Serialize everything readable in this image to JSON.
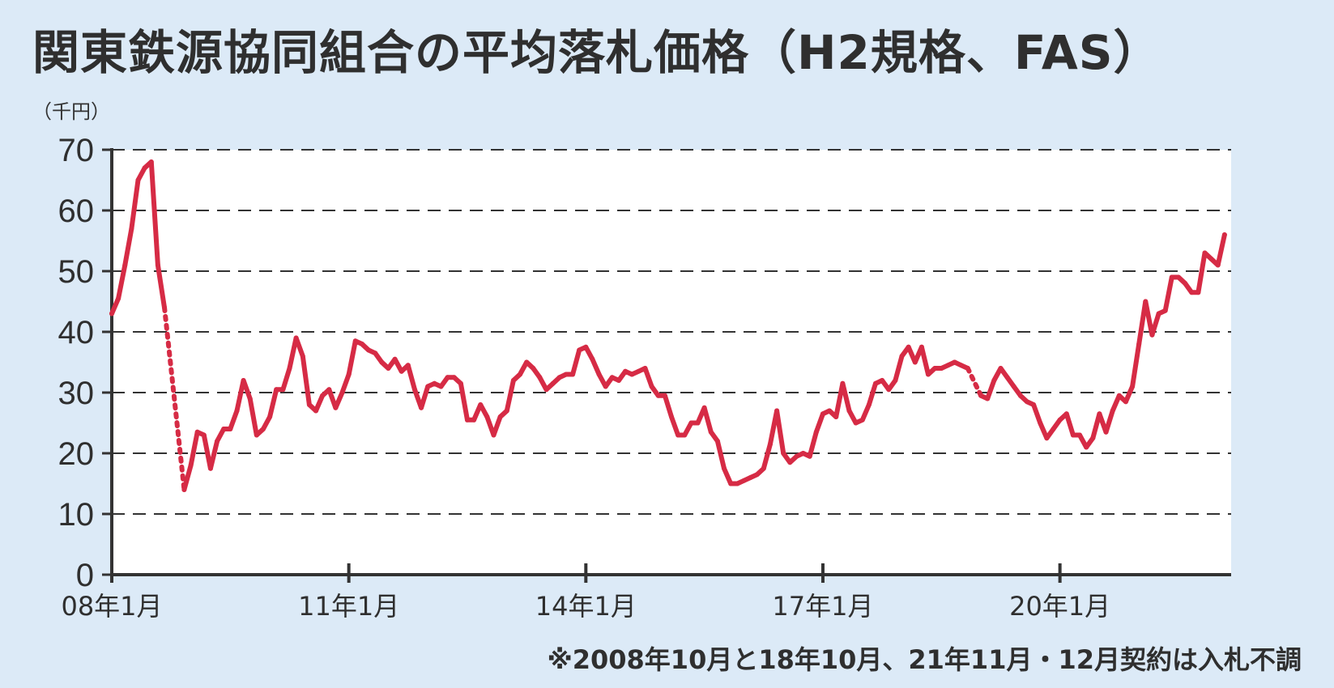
{
  "title": "関東鉄源協同組合の平均落札価格（H2規格、FAS）",
  "unit_label": "（千円）",
  "note": "※2008年10月と18年10月、21年11月・12月契約は入札不調",
  "colors": {
    "line": "#d62b45",
    "background": "#dceaf7",
    "plot_bg": "#ffffff",
    "grid": "#333333"
  },
  "chart_data": {
    "type": "line",
    "title": "関東鉄源協同組合の平均落札価格（H2規格、FAS）",
    "ylabel": "（千円）",
    "ylim": [
      0,
      70
    ],
    "y_ticks": [
      0,
      10,
      20,
      30,
      40,
      50,
      60,
      70
    ],
    "x_ticks": [
      {
        "month": 0,
        "label": "08年1月"
      },
      {
        "month": 36,
        "label": "11年1月"
      },
      {
        "month": 72,
        "label": "14年1月"
      },
      {
        "month": 108,
        "label": "17年1月"
      },
      {
        "month": 144,
        "label": "20年1月"
      }
    ],
    "x_unit": "months since 08年1月",
    "xlim": [
      0,
      170
    ],
    "grid": "horizontal dashed",
    "series": [
      {
        "values": [
          [
            0,
            43
          ],
          [
            1,
            45.5
          ],
          [
            2,
            51
          ],
          [
            3,
            57
          ],
          [
            4,
            65
          ],
          [
            5,
            67
          ],
          [
            6,
            68
          ],
          [
            7,
            51
          ],
          [
            8,
            44
          ],
          [
            11,
            14
          ],
          [
            12,
            18
          ],
          [
            13,
            23.5
          ],
          [
            14,
            23
          ],
          [
            15,
            17.5
          ],
          [
            16,
            22
          ],
          [
            17,
            24
          ],
          [
            18,
            24
          ],
          [
            19,
            27
          ],
          [
            20,
            32
          ],
          [
            21,
            29
          ],
          [
            22,
            23
          ],
          [
            23,
            24
          ],
          [
            24,
            26
          ],
          [
            25,
            30.5
          ],
          [
            26,
            30.5
          ],
          [
            27,
            34
          ],
          [
            28,
            39
          ],
          [
            29,
            36
          ],
          [
            30,
            28
          ],
          [
            31,
            27
          ],
          [
            32,
            29.5
          ],
          [
            33,
            30.5
          ],
          [
            34,
            27.5
          ],
          [
            35,
            30
          ],
          [
            36,
            33
          ],
          [
            37,
            38.5
          ],
          [
            38,
            38
          ],
          [
            39,
            37
          ],
          [
            40,
            36.5
          ],
          [
            41,
            35
          ],
          [
            42,
            34
          ],
          [
            43,
            35.5
          ],
          [
            44,
            33.5
          ],
          [
            45,
            34.5
          ],
          [
            46,
            30.5
          ],
          [
            47,
            27.5
          ],
          [
            48,
            31
          ],
          [
            49,
            31.5
          ],
          [
            50,
            31
          ],
          [
            51,
            32.5
          ],
          [
            52,
            32.5
          ],
          [
            53,
            31.5
          ],
          [
            54,
            25.5
          ],
          [
            55,
            25.5
          ],
          [
            56,
            28
          ],
          [
            57,
            26
          ],
          [
            58,
            23
          ],
          [
            59,
            26
          ],
          [
            60,
            27
          ],
          [
            61,
            32
          ],
          [
            62,
            33
          ],
          [
            63,
            35
          ],
          [
            64,
            34
          ],
          [
            65,
            32.5
          ],
          [
            66,
            30.5
          ],
          [
            67,
            31.5
          ],
          [
            68,
            32.5
          ],
          [
            69,
            33
          ],
          [
            70,
            33
          ],
          [
            71,
            37
          ],
          [
            72,
            37.5
          ],
          [
            73,
            35.5
          ],
          [
            74,
            33
          ],
          [
            75,
            31
          ],
          [
            76,
            32.5
          ],
          [
            77,
            32
          ],
          [
            78,
            33.5
          ],
          [
            79,
            33
          ],
          [
            80,
            33.5
          ],
          [
            81,
            34
          ],
          [
            82,
            31
          ],
          [
            83,
            29.5
          ],
          [
            84,
            29.5
          ],
          [
            85,
            26
          ],
          [
            86,
            23
          ],
          [
            87,
            23
          ],
          [
            88,
            25
          ],
          [
            89,
            25
          ],
          [
            90,
            27.5
          ],
          [
            91,
            23.5
          ],
          [
            92,
            22
          ],
          [
            93,
            17.5
          ],
          [
            94,
            15
          ],
          [
            95,
            15
          ],
          [
            96,
            15.5
          ],
          [
            97,
            16
          ],
          [
            98,
            16.5
          ],
          [
            99,
            17.5
          ],
          [
            100,
            21.5
          ],
          [
            101,
            27
          ],
          [
            102,
            20
          ],
          [
            103,
            18.5
          ],
          [
            104,
            19.5
          ],
          [
            105,
            20
          ],
          [
            106,
            19.5
          ],
          [
            107,
            23.5
          ],
          [
            108,
            26.5
          ],
          [
            109,
            27
          ],
          [
            110,
            26
          ],
          [
            111,
            31.5
          ],
          [
            112,
            27
          ],
          [
            113,
            25
          ],
          [
            114,
            25.5
          ],
          [
            115,
            28
          ],
          [
            116,
            31.5
          ],
          [
            117,
            32
          ],
          [
            118,
            30.5
          ],
          [
            119,
            32
          ],
          [
            120,
            36
          ],
          [
            121,
            37.5
          ],
          [
            122,
            35
          ],
          [
            123,
            37.5
          ],
          [
            124,
            33
          ],
          [
            125,
            34
          ],
          [
            126,
            34
          ],
          [
            127,
            34.5
          ],
          [
            128,
            35
          ],
          [
            129,
            34.5
          ],
          [
            130,
            34
          ],
          [
            132,
            29.5
          ],
          [
            133,
            29
          ],
          [
            134,
            32
          ],
          [
            135,
            34
          ],
          [
            136,
            32.5
          ],
          [
            137,
            31
          ],
          [
            138,
            29.5
          ],
          [
            139,
            28.5
          ],
          [
            140,
            28
          ],
          [
            141,
            25
          ],
          [
            142,
            22.5
          ],
          [
            143,
            24
          ],
          [
            144,
            25.5
          ],
          [
            145,
            26.5
          ],
          [
            146,
            23
          ],
          [
            147,
            23
          ],
          [
            148,
            21
          ],
          [
            149,
            22.5
          ],
          [
            150,
            26.5
          ],
          [
            151,
            23.5
          ],
          [
            152,
            27
          ],
          [
            153,
            29.5
          ],
          [
            154,
            28.5
          ],
          [
            155,
            31
          ],
          [
            156,
            38
          ],
          [
            157,
            45
          ],
          [
            158,
            39.5
          ],
          [
            159,
            43
          ],
          [
            160,
            43.5
          ],
          [
            161,
            49
          ],
          [
            162,
            49
          ],
          [
            163,
            48
          ],
          [
            164,
            46.5
          ],
          [
            165,
            46.5
          ],
          [
            166,
            53
          ],
          [
            167,
            52
          ],
          [
            168,
            51
          ],
          [
            169,
            56
          ]
        ],
        "gaps": [
          [
            8,
            11
          ],
          [
            130,
            132
          ]
        ]
      }
    ]
  }
}
